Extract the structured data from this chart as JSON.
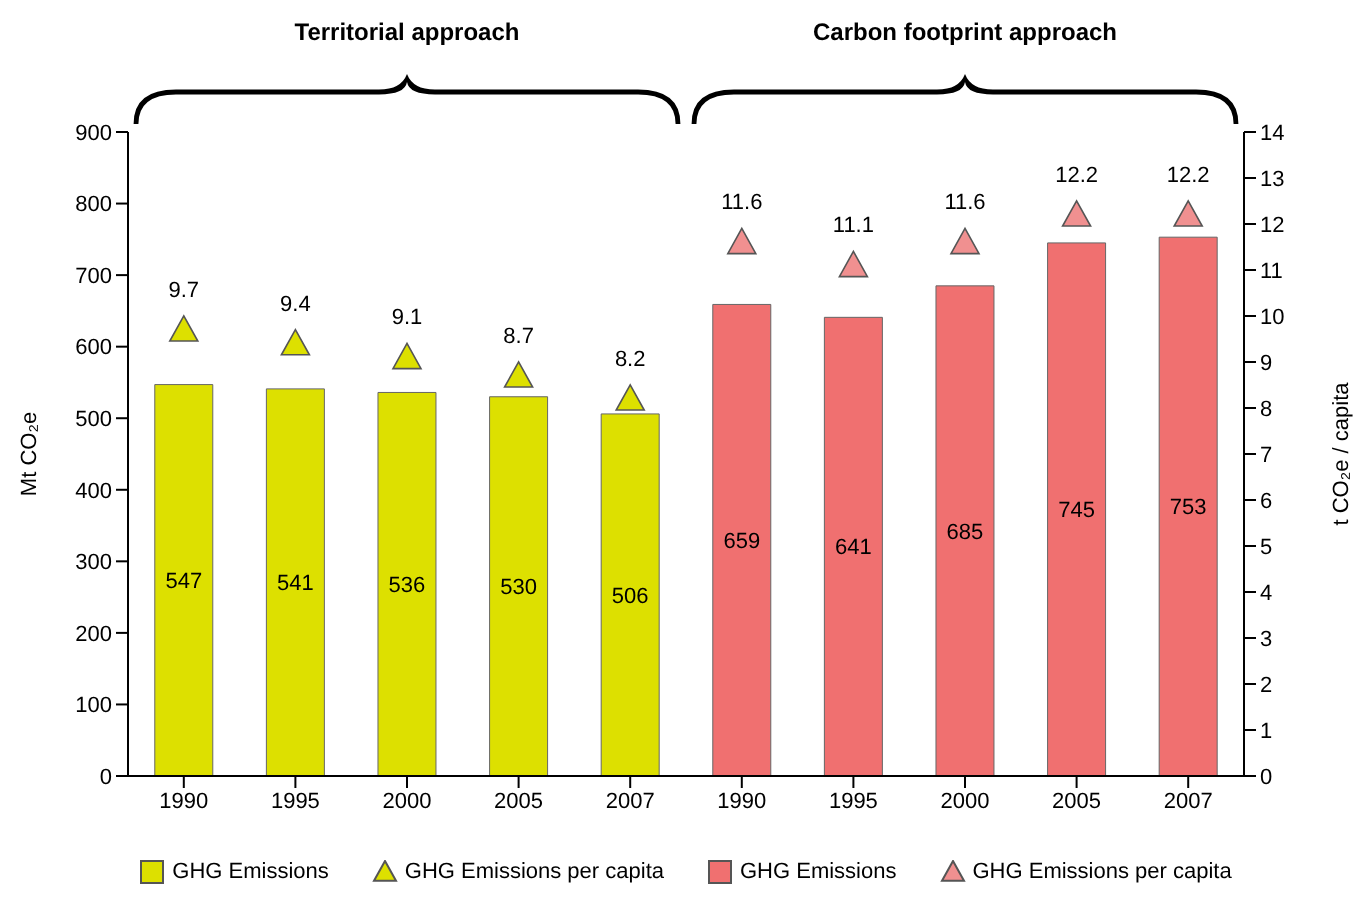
{
  "chart_data": {
    "type": "bar",
    "categories": [
      "1990",
      "1995",
      "2000",
      "2005",
      "2007",
      "1990",
      "1995",
      "2000",
      "2005",
      "2007"
    ],
    "series": [
      {
        "name": "GHG Emissions",
        "color": "#dde000",
        "values": [
          547,
          541,
          536,
          530,
          506,
          null,
          null,
          null,
          null,
          null
        ]
      },
      {
        "name": "GHG Emissions per capita",
        "type": "scatter",
        "axis": "y2",
        "color": "#dde000",
        "values": [
          9.7,
          9.4,
          9.1,
          8.7,
          8.2,
          null,
          null,
          null,
          null,
          null
        ]
      },
      {
        "name": "GHG Emissions",
        "color": "#f07070",
        "values": [
          null,
          null,
          null,
          null,
          null,
          659,
          641,
          685,
          745,
          753
        ]
      },
      {
        "name": "GHG Emissions per capita",
        "type": "scatter",
        "axis": "y2",
        "color": "#f09090",
        "values": [
          null,
          null,
          null,
          null,
          null,
          11.6,
          11.1,
          11.6,
          12.2,
          12.2
        ]
      }
    ],
    "annotations": [
      "Territorial approach",
      "Carbon footprint approach"
    ],
    "ylabel": "Mt CO₂e",
    "y2label": "t CO₂e / capita",
    "ylim": [
      0,
      900
    ],
    "yticks": [
      0,
      100,
      200,
      300,
      400,
      500,
      600,
      700,
      800,
      900
    ],
    "y2lim": [
      0,
      14
    ],
    "y2ticks": [
      0,
      1,
      2,
      3,
      4,
      5,
      6,
      7,
      8,
      9,
      10,
      11,
      12,
      13,
      14
    ],
    "stacked": true,
    "data_labels": true,
    "marker": "triangle",
    "grid": false,
    "legend": "bottom"
  }
}
